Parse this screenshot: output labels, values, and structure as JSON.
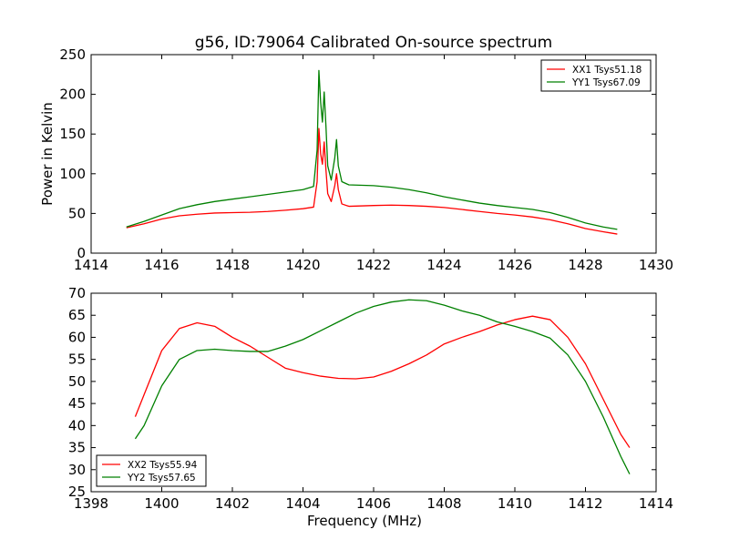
{
  "title": "g56, ID:79064 Calibrated On-source spectrum",
  "chart_data": [
    {
      "type": "line",
      "ylabel": "Power in Kelvin",
      "xlabel": "",
      "xlim": [
        1414,
        1430
      ],
      "ylim": [
        0,
        250
      ],
      "xticks": [
        1414,
        1416,
        1418,
        1420,
        1422,
        1424,
        1426,
        1428,
        1430
      ],
      "yticks": [
        0,
        50,
        100,
        150,
        200,
        250
      ],
      "legend_position": "top-right",
      "series": [
        {
          "name": "XX1 Tsys51.18",
          "color": "#ff0000",
          "points": [
            [
              1415.0,
              32
            ],
            [
              1415.5,
              37
            ],
            [
              1416.0,
              43
            ],
            [
              1416.5,
              47
            ],
            [
              1417.0,
              49
            ],
            [
              1417.5,
              50.5
            ],
            [
              1418.0,
              51
            ],
            [
              1418.5,
              51.5
            ],
            [
              1419.0,
              52.5
            ],
            [
              1419.5,
              54
            ],
            [
              1420.0,
              56
            ],
            [
              1420.3,
              58
            ],
            [
              1420.4,
              90
            ],
            [
              1420.45,
              157
            ],
            [
              1420.5,
              125
            ],
            [
              1420.55,
              112
            ],
            [
              1420.6,
              140
            ],
            [
              1420.65,
              105
            ],
            [
              1420.7,
              75
            ],
            [
              1420.8,
              65
            ],
            [
              1420.9,
              85
            ],
            [
              1420.95,
              100
            ],
            [
              1421.0,
              80
            ],
            [
              1421.1,
              62
            ],
            [
              1421.3,
              59
            ],
            [
              1422.0,
              60
            ],
            [
              1422.5,
              60.5
            ],
            [
              1423.0,
              60
            ],
            [
              1423.5,
              59
            ],
            [
              1424.0,
              57.5
            ],
            [
              1424.5,
              55
            ],
            [
              1425.0,
              52.5
            ],
            [
              1425.5,
              50
            ],
            [
              1426.0,
              48
            ],
            [
              1426.5,
              45.5
            ],
            [
              1427.0,
              42
            ],
            [
              1427.5,
              37
            ],
            [
              1428.0,
              31
            ],
            [
              1428.5,
              27
            ],
            [
              1428.9,
              24
            ]
          ]
        },
        {
          "name": "YY1 Tsys67.09",
          "color": "#008000",
          "points": [
            [
              1415.0,
              33
            ],
            [
              1415.5,
              40
            ],
            [
              1416.0,
              48
            ],
            [
              1416.5,
              56
            ],
            [
              1417.0,
              61
            ],
            [
              1417.5,
              65
            ],
            [
              1418.0,
              68
            ],
            [
              1418.5,
              71
            ],
            [
              1419.0,
              74
            ],
            [
              1419.5,
              77
            ],
            [
              1420.0,
              80
            ],
            [
              1420.3,
              84
            ],
            [
              1420.4,
              130
            ],
            [
              1420.45,
              230
            ],
            [
              1420.5,
              190
            ],
            [
              1420.55,
              165
            ],
            [
              1420.6,
              203
            ],
            [
              1420.65,
              160
            ],
            [
              1420.7,
              110
            ],
            [
              1420.8,
              92
            ],
            [
              1420.9,
              120
            ],
            [
              1420.95,
              143
            ],
            [
              1421.0,
              110
            ],
            [
              1421.1,
              90
            ],
            [
              1421.3,
              86
            ],
            [
              1422.0,
              85
            ],
            [
              1422.5,
              83
            ],
            [
              1423.0,
              80
            ],
            [
              1423.5,
              76
            ],
            [
              1424.0,
              71
            ],
            [
              1424.5,
              67
            ],
            [
              1425.0,
              63
            ],
            [
              1425.5,
              60
            ],
            [
              1426.0,
              57.5
            ],
            [
              1426.5,
              55
            ],
            [
              1427.0,
              51
            ],
            [
              1427.5,
              45
            ],
            [
              1428.0,
              38
            ],
            [
              1428.5,
              33
            ],
            [
              1428.9,
              30
            ]
          ]
        }
      ]
    },
    {
      "type": "line",
      "ylabel": "",
      "xlabel": "Frequency (MHz)",
      "xlim": [
        1398,
        1414
      ],
      "ylim": [
        25,
        70
      ],
      "xticks": [
        1398,
        1400,
        1402,
        1404,
        1406,
        1408,
        1410,
        1412,
        1414
      ],
      "yticks": [
        25,
        30,
        35,
        40,
        45,
        50,
        55,
        60,
        65,
        70
      ],
      "legend_position": "lower-left",
      "series": [
        {
          "name": "XX2 Tsys55.94",
          "color": "#ff0000",
          "points": [
            [
              1399.25,
              42
            ],
            [
              1399.5,
              47
            ],
            [
              1400.0,
              57
            ],
            [
              1400.5,
              62
            ],
            [
              1401.0,
              63.3
            ],
            [
              1401.5,
              62.5
            ],
            [
              1402.0,
              60
            ],
            [
              1402.5,
              58
            ],
            [
              1403.0,
              55.5
            ],
            [
              1403.5,
              53
            ],
            [
              1404.0,
              52
            ],
            [
              1404.5,
              51.2
            ],
            [
              1405.0,
              50.7
            ],
            [
              1405.5,
              50.6
            ],
            [
              1406.0,
              51
            ],
            [
              1406.5,
              52.3
            ],
            [
              1407.0,
              54
            ],
            [
              1407.5,
              56
            ],
            [
              1408.0,
              58.5
            ],
            [
              1408.5,
              60
            ],
            [
              1409.0,
              61.3
            ],
            [
              1409.5,
              62.8
            ],
            [
              1410.0,
              64
            ],
            [
              1410.5,
              64.8
            ],
            [
              1411.0,
              64
            ],
            [
              1411.5,
              60
            ],
            [
              1412.0,
              54
            ],
            [
              1412.5,
              46
            ],
            [
              1413.0,
              38
            ],
            [
              1413.25,
              35
            ]
          ]
        },
        {
          "name": "YY2 Tsys57.65",
          "color": "#008000",
          "points": [
            [
              1399.25,
              37
            ],
            [
              1399.5,
              40
            ],
            [
              1400.0,
              49
            ],
            [
              1400.5,
              55
            ],
            [
              1401.0,
              57
            ],
            [
              1401.5,
              57.3
            ],
            [
              1402.0,
              57
            ],
            [
              1402.5,
              56.8
            ],
            [
              1403.0,
              56.8
            ],
            [
              1403.5,
              58
            ],
            [
              1404.0,
              59.5
            ],
            [
              1404.5,
              61.5
            ],
            [
              1405.0,
              63.5
            ],
            [
              1405.5,
              65.5
            ],
            [
              1406.0,
              67
            ],
            [
              1406.5,
              68
            ],
            [
              1407.0,
              68.5
            ],
            [
              1407.5,
              68.3
            ],
            [
              1408.0,
              67.3
            ],
            [
              1408.5,
              66
            ],
            [
              1409.0,
              65
            ],
            [
              1409.5,
              63.5
            ],
            [
              1410.0,
              62.5
            ],
            [
              1410.5,
              61.3
            ],
            [
              1411.0,
              59.8
            ],
            [
              1411.5,
              56
            ],
            [
              1412.0,
              50
            ],
            [
              1412.5,
              42
            ],
            [
              1413.0,
              33
            ],
            [
              1413.25,
              29
            ]
          ]
        }
      ]
    }
  ]
}
